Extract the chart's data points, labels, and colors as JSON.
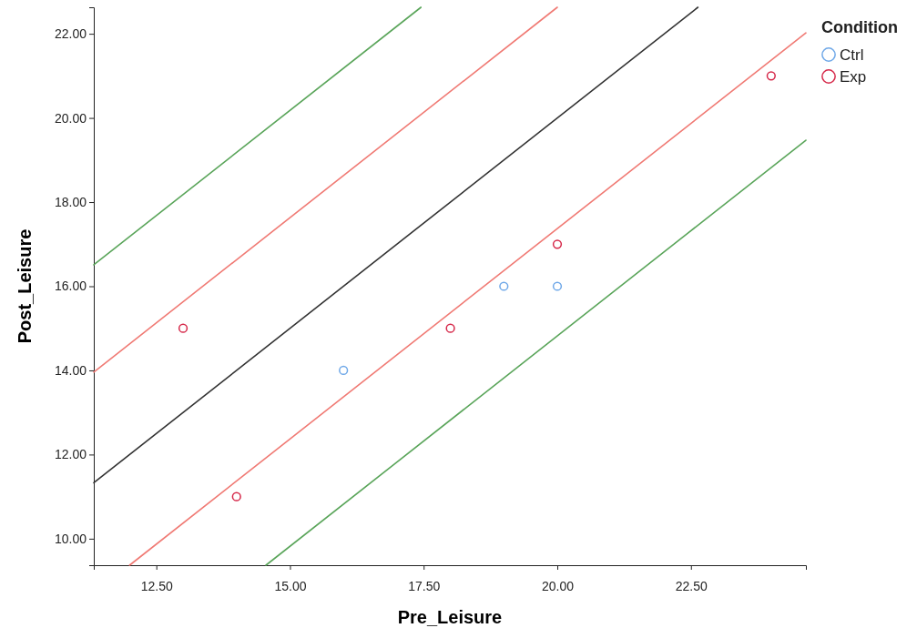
{
  "chart_data": {
    "type": "scatter",
    "xlabel": "Pre_Leisure",
    "ylabel": "Post_Leisure",
    "legend_title": "Condition",
    "legend": "top right",
    "marker": "circle",
    "grid": false,
    "xlim": [
      11.33,
      24.65
    ],
    "ylim": [
      9.37,
      22.63
    ],
    "xticks": [
      {
        "value": 12.5,
        "label": "12.50"
      },
      {
        "value": 15,
        "label": "15.00"
      },
      {
        "value": 17.5,
        "label": "17.50"
      },
      {
        "value": 20,
        "label": "20.00"
      },
      {
        "value": 22.5,
        "label": "22.50"
      }
    ],
    "yticks": [
      {
        "value": 10,
        "label": "10.00"
      },
      {
        "value": 12,
        "label": "12.00"
      },
      {
        "value": 14,
        "label": "14.00"
      },
      {
        "value": 16,
        "label": "16.00"
      },
      {
        "value": 18,
        "label": "18.00"
      },
      {
        "value": 20,
        "label": "20.00"
      },
      {
        "value": 22,
        "label": "22.00"
      }
    ],
    "series": [
      {
        "type": "line",
        "marker": "none",
        "color": "#5aa55a",
        "x": [
          11.33,
          17.45
        ],
        "values": [
          16.51,
          22.63
        ]
      },
      {
        "type": "line",
        "marker": "none",
        "color": "#f07a74",
        "x": [
          11.33,
          20.0
        ],
        "values": [
          13.96,
          22.63
        ]
      },
      {
        "type": "line",
        "marker": "none",
        "color": "#333333",
        "x": [
          11.33,
          22.63
        ],
        "values": [
          11.33,
          22.63
        ]
      },
      {
        "type": "line",
        "marker": "none",
        "color": "#f07a74",
        "x": [
          12.0,
          24.65
        ],
        "values": [
          9.37,
          22.02
        ]
      },
      {
        "type": "line",
        "marker": "none",
        "color": "#5aa55a",
        "x": [
          14.55,
          24.65
        ],
        "values": [
          9.37,
          19.47
        ]
      },
      {
        "name": "Ctrl",
        "color": "#6fa8e8",
        "x": [
          16,
          19,
          20
        ],
        "values": [
          14,
          16,
          16
        ]
      },
      {
        "name": "Exp",
        "color": "#d6294a",
        "x": [
          13,
          14,
          18,
          20,
          24
        ],
        "values": [
          15,
          11,
          15,
          17,
          21
        ]
      }
    ]
  }
}
